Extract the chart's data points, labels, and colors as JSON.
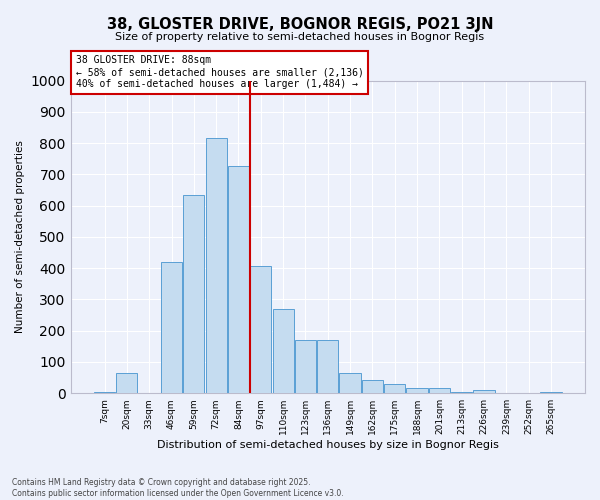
{
  "title": "38, GLOSTER DRIVE, BOGNOR REGIS, PO21 3JN",
  "subtitle": "Size of property relative to semi-detached houses in Bognor Regis",
  "xlabel": "Distribution of semi-detached houses by size in Bognor Regis",
  "ylabel": "Number of semi-detached properties",
  "categories": [
    "7sqm",
    "20sqm",
    "33sqm",
    "46sqm",
    "59sqm",
    "72sqm",
    "84sqm",
    "97sqm",
    "110sqm",
    "123sqm",
    "136sqm",
    "149sqm",
    "162sqm",
    "175sqm",
    "188sqm",
    "201sqm",
    "213sqm",
    "226sqm",
    "239sqm",
    "252sqm",
    "265sqm"
  ],
  "values": [
    5,
    65,
    0,
    420,
    635,
    815,
    725,
    408,
    270,
    170,
    170,
    65,
    42,
    30,
    18,
    18,
    5,
    10,
    0,
    0,
    5
  ],
  "bar_color": "#c5dcf0",
  "bar_edge_color": "#5a9fd4",
  "vline_color": "#cc0000",
  "annotation_title": "38 GLOSTER DRIVE: 88sqm",
  "annotation_line1": "← 58% of semi-detached houses are smaller (2,136)",
  "annotation_line2": "40% of semi-detached houses are larger (1,484) →",
  "annotation_box_color": "#cc0000",
  "ylim": [
    0,
    1000
  ],
  "yticks": [
    0,
    100,
    200,
    300,
    400,
    500,
    600,
    700,
    800,
    900,
    1000
  ],
  "background_color": "#edf1fb",
  "grid_color": "#ffffff",
  "footer1": "Contains HM Land Registry data © Crown copyright and database right 2025.",
  "footer2": "Contains public sector information licensed under the Open Government Licence v3.0."
}
